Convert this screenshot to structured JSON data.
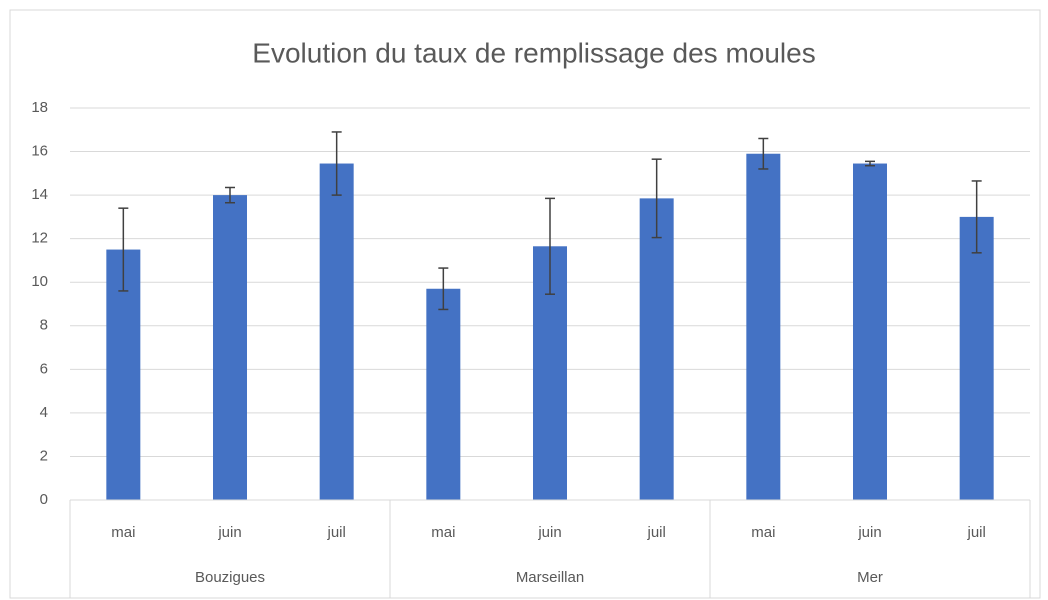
{
  "chart_data": {
    "type": "bar",
    "title": "Evolution du taux de remplissage des moules",
    "categories": [
      "mai",
      "juin",
      "juil",
      "mai",
      "juin",
      "juil",
      "mai",
      "juin",
      "juil"
    ],
    "groups": [
      "Bouzigues",
      "Marseillan",
      "Mer"
    ],
    "values": [
      11.5,
      14,
      15.45,
      9.7,
      11.65,
      13.85,
      15.9,
      15.45,
      13
    ],
    "errors": [
      1.9,
      0.35,
      1.45,
      0.95,
      2.2,
      1.8,
      0.7,
      0.1,
      1.65
    ],
    "color": "#4472c4",
    "error_color": "#404040",
    "ylim": [
      0,
      18
    ],
    "yticks": [
      0,
      2,
      4,
      6,
      8,
      10,
      12,
      14,
      16,
      18
    ],
    "grid": true
  }
}
